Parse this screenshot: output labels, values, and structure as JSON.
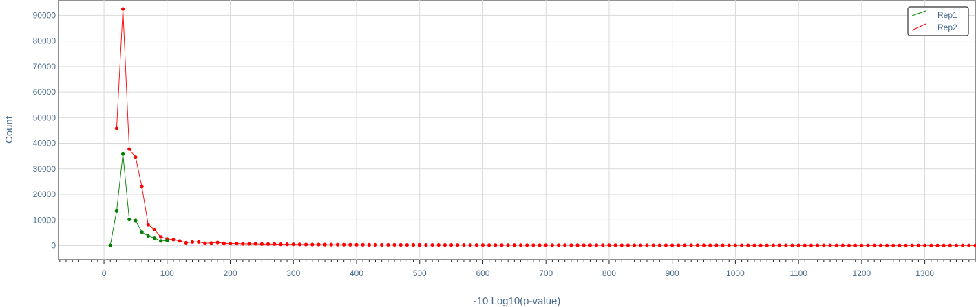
{
  "chart_data": {
    "type": "line",
    "title": "",
    "xlabel": "-10 Log10(p-value)",
    "ylabel": "Count",
    "xlim": [
      -72,
      1380
    ],
    "ylim": [
      -5500,
      96000
    ],
    "x_ticks": [
      0,
      100,
      200,
      300,
      400,
      500,
      600,
      700,
      800,
      900,
      1000,
      1100,
      1200,
      1300
    ],
    "x_tick_labels": [
      "0",
      "100",
      "200",
      "300",
      "400",
      "500",
      "600",
      "700",
      "800",
      "900",
      "1000",
      "1100",
      "1200",
      "1300"
    ],
    "y_ticks": [
      0,
      10000,
      20000,
      30000,
      40000,
      50000,
      60000,
      70000,
      80000,
      90000
    ],
    "y_tick_labels": [
      "0",
      "10000",
      "20000",
      "30000",
      "40000",
      "50000",
      "60000",
      "70000",
      "80000",
      "90000"
    ],
    "grid": true,
    "legend_position": "top-right",
    "series": [
      {
        "name": "Rep1",
        "color": "#008000",
        "x": [
          10,
          20,
          30,
          40,
          50,
          60,
          70,
          80,
          90,
          100
        ],
        "y": [
          100,
          13500,
          35800,
          10200,
          9800,
          5300,
          3800,
          2900,
          1800,
          1900
        ]
      },
      {
        "name": "Rep2",
        "color": "#ff0000",
        "x_start": 20,
        "x_step": 10,
        "y": [
          45800,
          92500,
          37700,
          34600,
          23000,
          8200,
          6200,
          3400,
          2600,
          2300,
          1800,
          1100,
          1400,
          1400,
          900,
          1000,
          1200,
          900,
          800,
          800,
          700,
          700,
          700,
          600,
          600,
          600,
          500,
          500,
          500,
          450,
          420,
          400,
          400,
          380,
          370,
          360,
          350,
          340,
          330,
          320,
          310,
          300,
          295,
          290,
          285,
          280,
          275,
          270,
          265,
          260,
          255,
          250,
          245,
          240,
          235,
          230,
          225,
          220,
          215,
          210,
          205,
          200,
          198,
          196,
          194,
          192,
          190,
          188,
          186,
          184,
          182,
          180,
          178,
          176,
          174,
          172,
          170,
          168,
          166,
          164,
          162,
          160,
          158,
          156,
          154,
          152,
          150,
          148,
          146,
          144,
          142,
          140,
          138,
          136,
          134,
          132,
          130,
          128,
          126,
          124,
          122,
          120,
          118,
          116,
          114,
          112,
          110,
          108,
          106,
          104,
          102,
          100,
          99,
          98,
          97,
          96,
          95,
          94,
          93,
          92,
          91,
          90,
          89,
          88,
          87,
          86,
          85,
          84,
          83,
          82,
          81,
          80,
          79,
          78,
          77,
          76,
          75
        ]
      }
    ]
  }
}
